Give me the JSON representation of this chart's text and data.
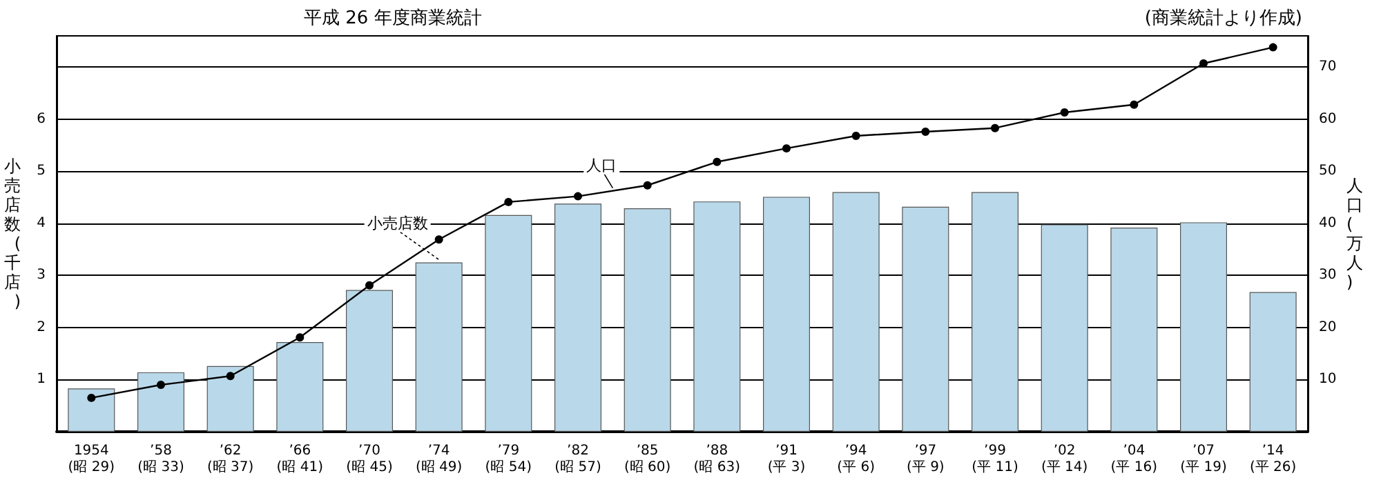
{
  "chart_data": {
    "type": "bar",
    "title": "平成 26 年度商業統計",
    "annotations": [
      "(商業統計より作成)"
    ],
    "ylabel": "小売店数(千店)",
    "y2label": "人口(万人)",
    "categories": [
      "1954\n(昭 29)",
      "’58\n(昭 33)",
      "’62\n(昭 37)",
      "’66\n(昭 41)",
      "’70\n(昭 45)",
      "’74\n(昭 49)",
      "’79\n(昭 54)",
      "’82\n(昭 57)",
      "’85\n(昭 60)",
      "’88\n(昭 63)",
      "’91\n(平 3)",
      "’94\n(平 6)",
      "’97\n(平 9)",
      "’99\n(平 11)",
      "’02\n(平 14)",
      "’04\n(平 16)",
      "’07\n(平 19)",
      "’14\n(平 26)"
    ],
    "series": [
      {
        "name": "小売店数",
        "color": "#b9d9ea",
        "values": [
          0.83,
          1.14,
          1.26,
          1.72,
          2.72,
          3.25,
          4.16,
          4.38,
          4.29,
          4.42,
          4.51,
          4.6,
          4.32,
          4.6,
          3.98,
          3.92,
          4.02,
          2.68
        ]
      },
      {
        "name": "人口",
        "type": "line",
        "axis": "y2",
        "color": "#000000",
        "marker": "circle",
        "values": [
          6.5,
          9.0,
          10.7,
          18.1,
          28.1,
          36.9,
          44.1,
          45.2,
          47.3,
          51.8,
          54.4,
          56.8,
          57.6,
          58.3,
          61.3,
          62.8,
          70.7,
          73.8
        ]
      }
    ],
    "ylim": [
      0,
      7.6
    ],
    "yticks": [
      1,
      2,
      3,
      4,
      5,
      6,
      {
        "value": 7,
        "label": null
      }
    ],
    "y2lim": [
      0,
      76
    ],
    "y2ticks": [
      10,
      20,
      30,
      40,
      50,
      60,
      70
    ],
    "grid": "y",
    "legend": false
  }
}
